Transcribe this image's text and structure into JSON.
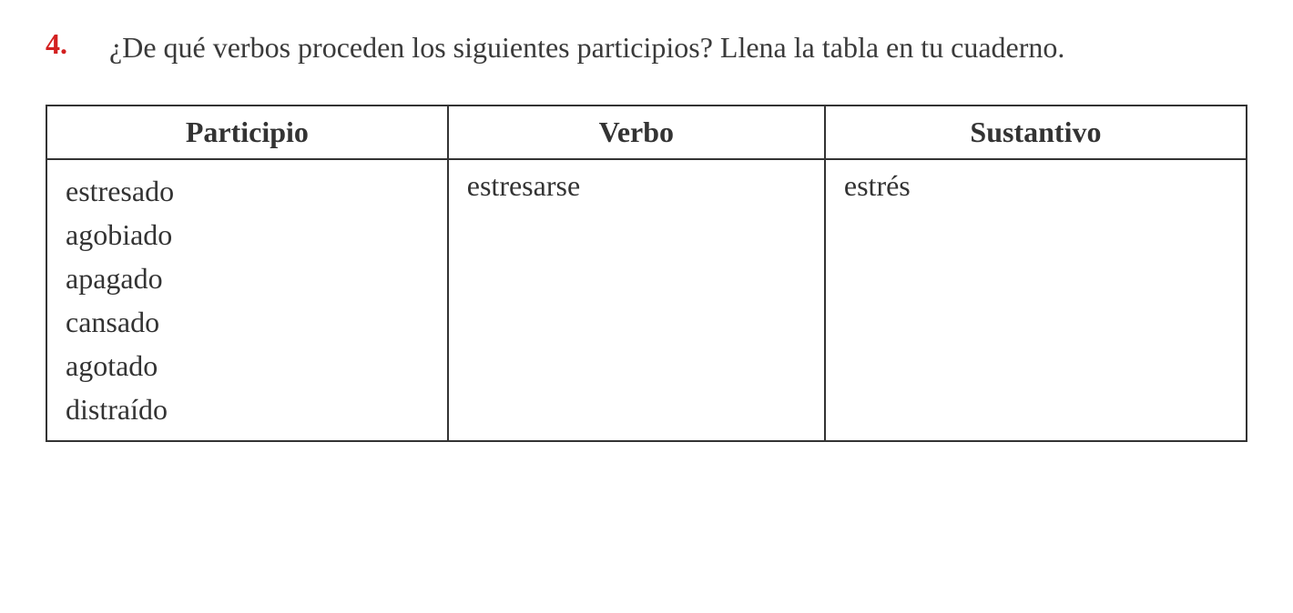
{
  "exercise": {
    "number": "4.",
    "prompt": "¿De qué verbos proceden los siguientes participios? Llena la tabla en tu cuaderno."
  },
  "table": {
    "headers": {
      "col1": "Participio",
      "col2": "Verbo",
      "col3": "Sustantivo"
    },
    "rows": {
      "participios": {
        "p1": "estresado",
        "p2": "agobiado",
        "p3": "apagado",
        "p4": "cansado",
        "p5": "agotado",
        "p6": "distraído"
      },
      "verbos": {
        "v1": "estresarse"
      },
      "sustantivos": {
        "s1": "estrés"
      }
    }
  },
  "styling": {
    "number_color": "#d32020",
    "text_color": "#3a3a3a",
    "border_color": "#333333",
    "background_color": "#ffffff",
    "font_size_main": 32,
    "font_family": "Georgia, Times New Roman, serif"
  }
}
